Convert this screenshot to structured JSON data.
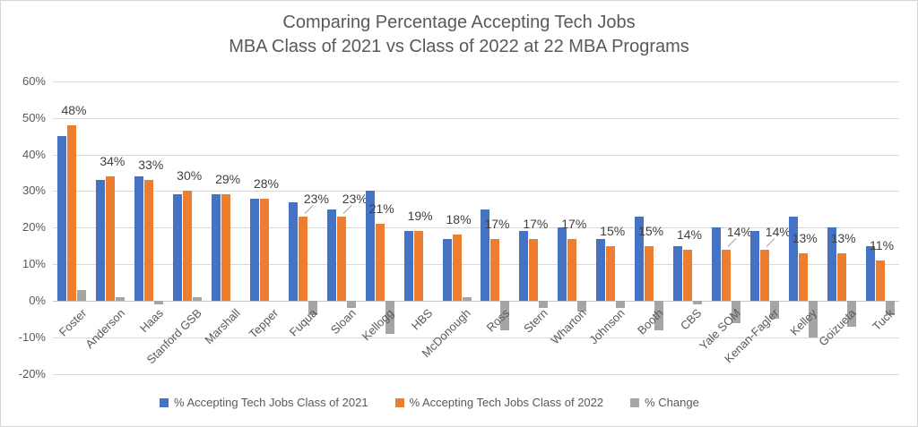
{
  "chart_data": {
    "type": "bar",
    "title": "Comparing Percentage Accepting Tech Jobs",
    "subtitle": "MBA Class of 2021 vs Class of 2022 at 22 MBA Programs",
    "categories": [
      "Foster",
      "Anderson",
      "Haas",
      "Stanford GSB",
      "Marshall",
      "Tepper",
      "Fuqua",
      "Sloan",
      "Kellogg",
      "HBS",
      "McDonough",
      "Ross",
      "Stern",
      "Wharton",
      "Johnson",
      "Booth",
      "CBS",
      "Yale SOM",
      "Kenan-Fagler",
      "Kelley",
      "Goizueta",
      "Tuck"
    ],
    "series": [
      {
        "name": "% Accepting Tech Jobs Class of 2021",
        "color": "#4472C4",
        "values": [
          45,
          33,
          34,
          29,
          29,
          28,
          27,
          25,
          30,
          19,
          17,
          25,
          19,
          20,
          17,
          23,
          15,
          20,
          19,
          23,
          20,
          15
        ]
      },
      {
        "name": "% Accepting Tech Jobs Class of 2022",
        "color": "#ED7D31",
        "values": [
          48,
          34,
          33,
          30,
          29,
          28,
          23,
          23,
          21,
          19,
          18,
          17,
          17,
          17,
          15,
          15,
          14,
          14,
          14,
          13,
          13,
          11
        ],
        "data_labels": [
          "48%",
          "34%",
          "33%",
          "30%",
          "29%",
          "28%",
          "23%",
          "23%",
          "21%",
          "19%",
          "18%",
          "17%",
          "17%",
          "17%",
          "15%",
          "15%",
          "14%",
          "14%",
          "14%",
          "13%",
          "13%",
          "11%"
        ]
      },
      {
        "name": "% Change",
        "color": "#A5A5A5",
        "values": [
          3,
          1,
          -1,
          1,
          0,
          0,
          -4,
          -2,
          -9,
          0,
          1,
          -8,
          -2,
          -3,
          -2,
          -8,
          -1,
          -6,
          -5,
          -10,
          -7,
          -4
        ]
      }
    ],
    "ylim": [
      -20,
      60
    ],
    "yticks": [
      "60%",
      "50%",
      "40%",
      "30%",
      "20%",
      "10%",
      "0%",
      "-10%",
      "-20%"
    ],
    "grid": "horizontal",
    "legend_position": "bottom",
    "label_callouts": [
      "Fuqua",
      "Sloan",
      "Yale SOM",
      "Kenan-Fagler"
    ]
  }
}
